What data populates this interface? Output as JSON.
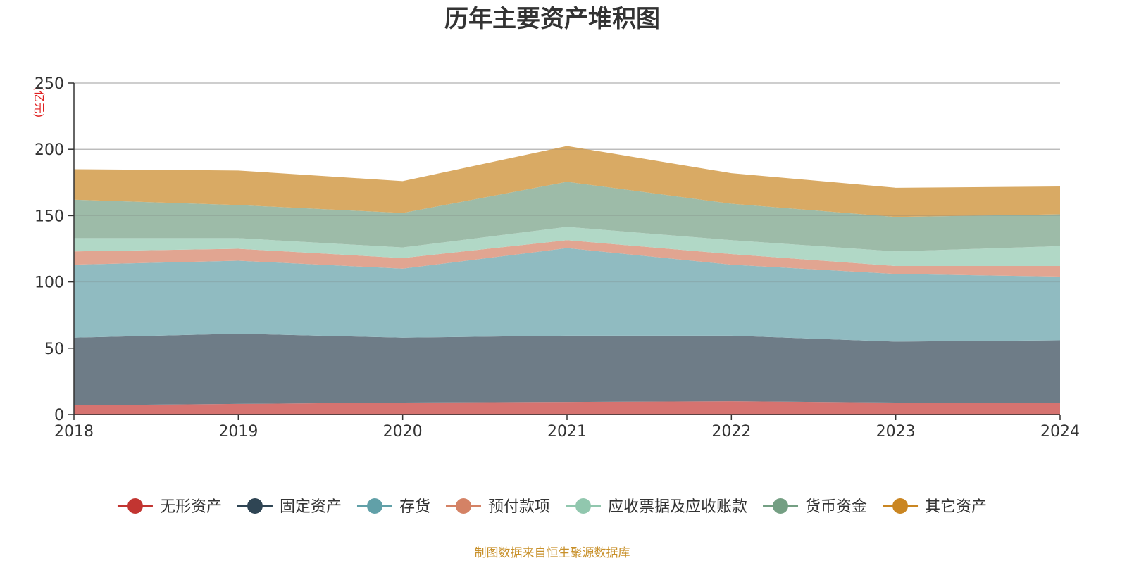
{
  "chart_data": {
    "type": "area",
    "stacked": true,
    "title": "历年主要资产堆积图",
    "unit_label": "(亿元)",
    "x": [
      "2018",
      "2019",
      "2020",
      "2021",
      "2022",
      "2023",
      "2024"
    ],
    "ylim": [
      0,
      250
    ],
    "yticks": [
      "0",
      "50",
      "100",
      "150",
      "200",
      "250"
    ],
    "grid": true,
    "legend_position": "bottom",
    "series": [
      {
        "name": "无形资产",
        "color": "#c23531",
        "fill": "#d67370",
        "values": [
          7,
          8,
          9,
          9.5,
          10,
          9,
          9
        ]
      },
      {
        "name": "固定资产",
        "color": "#2f4554",
        "fill": "#6e7c87",
        "values": [
          51,
          53,
          49,
          50,
          49.5,
          46,
          47
        ]
      },
      {
        "name": "存货",
        "color": "#61a0a8",
        "fill": "#90bbc1",
        "values": [
          55,
          55,
          52,
          66,
          53.5,
          51,
          48
        ]
      },
      {
        "name": "预付款项",
        "color": "#d48265",
        "fill": "#e1a591",
        "values": [
          10,
          9,
          8,
          6,
          8,
          6,
          8
        ]
      },
      {
        "name": "应收票据及应收账款",
        "color": "#91c7ae",
        "fill": "#b1d8c6",
        "values": [
          10,
          8,
          8,
          10,
          10.5,
          11,
          15
        ]
      },
      {
        "name": "货币资金",
        "color": "#749f83",
        "fill": "#9dbba8",
        "values": [
          29,
          25,
          26,
          34,
          27.5,
          26,
          24
        ]
      },
      {
        "name": "其它资产",
        "color": "#ca8622",
        "fill": "#d9aa64",
        "values": [
          23,
          26,
          24,
          27,
          23,
          22,
          21
        ]
      }
    ],
    "source": "制图数据来自恒生聚源数据库"
  }
}
